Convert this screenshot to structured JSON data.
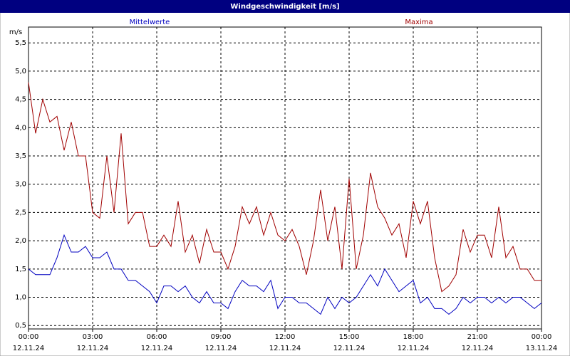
{
  "chart_data": {
    "type": "line",
    "title": "Windgeschwindigkeit [m/s]",
    "y_label": "m/s",
    "x": [
      0,
      20,
      40,
      60,
      80,
      100,
      120,
      140,
      160,
      180,
      200,
      220,
      240,
      260,
      280,
      300,
      320,
      340,
      360,
      380,
      400,
      420,
      440,
      460,
      480,
      500,
      520,
      540,
      560,
      580,
      600,
      620,
      640,
      660,
      680,
      700,
      720,
      740,
      760,
      780,
      800,
      820,
      840,
      860,
      880,
      900,
      920,
      940,
      960,
      980,
      1000,
      1020,
      1040,
      1060,
      1080,
      1100,
      1120,
      1140,
      1160,
      1180,
      1200,
      1220,
      1240,
      1260,
      1280,
      1300,
      1320,
      1340,
      1360,
      1380,
      1400,
      1420,
      1440
    ],
    "series": [
      {
        "name": "Mittelwerte",
        "color": "#0000c0",
        "values": [
          1.5,
          1.4,
          1.4,
          1.4,
          1.7,
          2.1,
          1.8,
          1.8,
          1.9,
          1.7,
          1.7,
          1.8,
          1.5,
          1.5,
          1.3,
          1.3,
          1.2,
          1.1,
          0.9,
          1.2,
          1.2,
          1.1,
          1.2,
          1.0,
          0.9,
          1.1,
          0.9,
          0.9,
          0.8,
          1.1,
          1.3,
          1.2,
          1.2,
          1.1,
          1.3,
          0.8,
          1.0,
          1.0,
          0.9,
          0.9,
          0.8,
          0.7,
          1.0,
          0.8,
          1.0,
          0.9,
          1.0,
          1.2,
          1.4,
          1.2,
          1.5,
          1.3,
          1.1,
          1.2,
          1.3,
          0.9,
          1.0,
          0.8,
          0.8,
          0.7,
          0.8,
          1.0,
          0.9,
          1.0,
          1.0,
          0.9,
          1.0,
          0.9,
          1.0,
          1.0,
          0.9,
          0.8,
          0.9
        ]
      },
      {
        "name": "Maxima",
        "color": "#a00000",
        "values": [
          4.8,
          3.9,
          4.5,
          4.1,
          4.2,
          3.6,
          4.1,
          3.5,
          3.5,
          2.5,
          2.4,
          3.5,
          2.5,
          3.9,
          2.3,
          2.5,
          2.5,
          1.9,
          1.9,
          2.1,
          1.9,
          2.7,
          1.8,
          2.1,
          1.6,
          2.2,
          1.8,
          1.8,
          1.5,
          1.9,
          2.6,
          2.3,
          2.6,
          2.1,
          2.5,
          2.1,
          2.0,
          2.2,
          1.9,
          1.4,
          2.0,
          2.9,
          2.0,
          2.6,
          1.5,
          3.1,
          1.5,
          2.1,
          3.2,
          2.6,
          2.4,
          2.1,
          2.3,
          1.7,
          2.7,
          2.3,
          2.7,
          1.7,
          1.1,
          1.2,
          1.4,
          2.2,
          1.8,
          2.1,
          2.1,
          1.7,
          2.6,
          1.7,
          1.9,
          1.5,
          1.5,
          1.3,
          1.3
        ]
      }
    ],
    "xlim": [
      0,
      1440
    ],
    "xticks": [
      {
        "value": 0,
        "label": "00:00",
        "date": "12.11.24"
      },
      {
        "value": 180,
        "label": "03:00",
        "date": "12.11.24"
      },
      {
        "value": 360,
        "label": "06:00",
        "date": "12.11.24"
      },
      {
        "value": 540,
        "label": "09:00",
        "date": "12.11.24"
      },
      {
        "value": 720,
        "label": "12:00",
        "date": "12.11.24"
      },
      {
        "value": 900,
        "label": "15:00",
        "date": "12.11.24"
      },
      {
        "value": 1080,
        "label": "18:00",
        "date": "12.11.24"
      },
      {
        "value": 1260,
        "label": "21:00",
        "date": "12.11.24"
      },
      {
        "value": 1440,
        "label": "00:00",
        "date": "13.11.24"
      }
    ],
    "ylim": [
      0.44,
      5.78
    ],
    "yticks": [
      {
        "value": 0.5,
        "label": "0,5"
      },
      {
        "value": 1.0,
        "label": "1,0"
      },
      {
        "value": 1.5,
        "label": "1,5"
      },
      {
        "value": 2.0,
        "label": "2,0"
      },
      {
        "value": 2.5,
        "label": "2,5"
      },
      {
        "value": 3.0,
        "label": "3,0"
      },
      {
        "value": 3.5,
        "label": "3,5"
      },
      {
        "value": 4.0,
        "label": "4,0"
      },
      {
        "value": 4.5,
        "label": "4,5"
      },
      {
        "value": 5.0,
        "label": "5,0"
      },
      {
        "value": 5.5,
        "label": "5,5"
      }
    ],
    "grid": true
  }
}
